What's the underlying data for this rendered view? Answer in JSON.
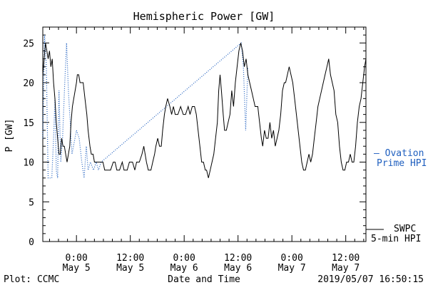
{
  "chart_data": {
    "type": "line",
    "title": "Hemispheric Power [GW]",
    "xlabel": "Date and Time",
    "ylabel": "P [GW]",
    "ylim": [
      0,
      27
    ],
    "yticks": [
      0,
      5,
      10,
      15,
      20,
      25
    ],
    "xlim_hours": [
      -7.5,
      64.5
    ],
    "xticks": [
      {
        "hour": 0,
        "line1": "0:00",
        "line2": "May 5"
      },
      {
        "hour": 12,
        "line1": "12:00",
        "line2": "May 5"
      },
      {
        "hour": 24,
        "line1": "0:00",
        "line2": "May 6"
      },
      {
        "hour": 36,
        "line1": "12:00",
        "line2": "May 6"
      },
      {
        "hour": 48,
        "line1": "0:00",
        "line2": "May 7"
      },
      {
        "hour": 60,
        "line1": "12:00",
        "line2": "May 7"
      }
    ],
    "grid": false,
    "series": [
      {
        "name": "Ovation Prime HPI",
        "legend_line1": "— Ovation",
        "legend_line2": "Prime HPI",
        "color": "#1f5fbf",
        "style": "dotted",
        "points": [
          [
            -7.5,
            13
          ],
          [
            -7.1,
            26
          ],
          [
            -6.7,
            22
          ],
          [
            -6.3,
            8
          ],
          [
            -5.9,
            8
          ],
          [
            -5.5,
            8
          ],
          [
            -5.1,
            13
          ],
          [
            -4.8,
            18
          ],
          [
            -4.5,
            9
          ],
          [
            -4.2,
            8
          ],
          [
            -3.9,
            19
          ],
          [
            -3.5,
            10
          ],
          [
            -3.1,
            13
          ],
          [
            -2.6,
            20
          ],
          [
            -2.2,
            25
          ],
          [
            -1.8,
            19
          ],
          [
            -1.4,
            15
          ],
          [
            -1,
            11
          ],
          [
            0,
            14
          ],
          [
            0.6,
            13
          ],
          [
            1.2,
            10
          ],
          [
            1.7,
            8
          ],
          [
            2.2,
            12
          ],
          [
            2.6,
            9
          ],
          [
            3.1,
            10
          ],
          [
            3.8,
            9
          ],
          [
            4.4,
            10
          ],
          [
            4.9,
            9
          ],
          [
            5.5,
            10
          ],
          [
            36.7,
            25
          ],
          [
            37.2,
            22
          ],
          [
            37.7,
            14
          ],
          [
            38.2,
            22
          ]
        ]
      },
      {
        "name": "SWPC 5-min HPI",
        "legend_line1": "SWPC",
        "legend_line2": "5-min HPI",
        "color": "#000000",
        "style": "solid",
        "points": [
          [
            -7.5,
            21
          ],
          [
            -7.2,
            23
          ],
          [
            -6.9,
            25
          ],
          [
            -6.6,
            24
          ],
          [
            -6.3,
            23
          ],
          [
            -6,
            24
          ],
          [
            -5.7,
            22
          ],
          [
            -5.4,
            23
          ],
          [
            -5.1,
            20
          ],
          [
            -4.8,
            18
          ],
          [
            -4.5,
            15
          ],
          [
            -4.2,
            13
          ],
          [
            -3.9,
            11
          ],
          [
            -3.6,
            11
          ],
          [
            -3.3,
            13
          ],
          [
            -3,
            12
          ],
          [
            -2.7,
            12
          ],
          [
            -2.4,
            11
          ],
          [
            -2.1,
            10
          ],
          [
            -1.8,
            11
          ],
          [
            -1.5,
            12
          ],
          [
            -1.2,
            15
          ],
          [
            -0.9,
            17
          ],
          [
            -0.6,
            18
          ],
          [
            -0.3,
            19
          ],
          [
            0,
            20
          ],
          [
            0.2,
            21
          ],
          [
            0.5,
            21
          ],
          [
            0.8,
            20
          ],
          [
            1.2,
            20
          ],
          [
            1.5,
            20
          ],
          [
            1.9,
            18
          ],
          [
            2.3,
            16
          ],
          [
            2.6,
            14
          ],
          [
            3,
            12
          ],
          [
            3.3,
            11
          ],
          [
            3.7,
            11
          ],
          [
            4,
            10
          ],
          [
            4.6,
            10
          ],
          [
            5.2,
            10
          ],
          [
            5.9,
            10
          ],
          [
            6.3,
            9
          ],
          [
            6.9,
            9
          ],
          [
            7.6,
            9
          ],
          [
            8.2,
            10
          ],
          [
            8.6,
            10
          ],
          [
            9,
            9
          ],
          [
            9.6,
            9
          ],
          [
            10.2,
            10
          ],
          [
            10.6,
            9
          ],
          [
            11.3,
            9
          ],
          [
            11.8,
            10
          ],
          [
            12.5,
            10
          ],
          [
            13,
            9
          ],
          [
            13.4,
            10
          ],
          [
            14,
            10
          ],
          [
            14.6,
            11
          ],
          [
            15,
            12
          ],
          [
            15.6,
            10
          ],
          [
            16,
            9
          ],
          [
            16.6,
            9
          ],
          [
            17,
            10
          ],
          [
            17.4,
            11
          ],
          [
            17.7,
            12
          ],
          [
            18.1,
            13
          ],
          [
            18.5,
            12
          ],
          [
            18.9,
            12
          ],
          [
            19.2,
            14
          ],
          [
            19.6,
            16
          ],
          [
            19.9,
            17
          ],
          [
            20.3,
            18
          ],
          [
            20.8,
            17
          ],
          [
            21.2,
            16
          ],
          [
            21.6,
            17
          ],
          [
            22.0,
            16
          ],
          [
            22.6,
            16
          ],
          [
            23.2,
            17
          ],
          [
            23.8,
            16
          ],
          [
            24.3,
            16
          ],
          [
            24.9,
            17
          ],
          [
            25.3,
            16
          ],
          [
            25.8,
            17
          ],
          [
            26.3,
            17
          ],
          [
            26.7,
            16
          ],
          [
            27.1,
            14
          ],
          [
            27.5,
            12
          ],
          [
            27.9,
            10
          ],
          [
            28.3,
            10
          ],
          [
            28.7,
            9
          ],
          [
            29.0,
            9
          ],
          [
            29.4,
            8
          ],
          [
            29.8,
            9
          ],
          [
            30.2,
            10
          ],
          [
            30.6,
            11
          ],
          [
            31,
            13
          ],
          [
            31.4,
            15
          ],
          [
            31.7,
            19
          ],
          [
            32.0,
            21
          ],
          [
            32.3,
            19
          ],
          [
            32.7,
            16
          ],
          [
            33.0,
            14
          ],
          [
            33.4,
            14
          ],
          [
            33.8,
            15
          ],
          [
            34.2,
            16
          ],
          [
            34.6,
            19
          ],
          [
            35.0,
            17
          ],
          [
            35.4,
            20
          ],
          [
            35.8,
            22
          ],
          [
            36.2,
            24
          ],
          [
            36.6,
            25
          ],
          [
            37.0,
            24
          ],
          [
            37.4,
            22
          ],
          [
            37.8,
            23
          ],
          [
            38.2,
            21
          ],
          [
            38.6,
            20
          ],
          [
            39.0,
            19
          ],
          [
            39.4,
            18
          ],
          [
            39.8,
            17
          ],
          [
            40.4,
            17
          ],
          [
            40.8,
            15
          ],
          [
            41.2,
            13
          ],
          [
            41.5,
            12
          ],
          [
            41.9,
            14
          ],
          [
            42.3,
            13
          ],
          [
            42.7,
            13
          ],
          [
            43.1,
            15
          ],
          [
            43.5,
            13
          ],
          [
            43.9,
            14
          ],
          [
            44.3,
            12
          ],
          [
            44.7,
            13
          ],
          [
            45.1,
            14
          ],
          [
            45.5,
            16
          ],
          [
            45.9,
            19
          ],
          [
            46.3,
            20
          ],
          [
            46.6,
            20
          ],
          [
            47.0,
            21
          ],
          [
            47.4,
            22
          ],
          [
            47.8,
            21
          ],
          [
            48.2,
            20
          ],
          [
            48.6,
            18
          ],
          [
            49.0,
            16
          ],
          [
            49.4,
            14
          ],
          [
            49.8,
            12
          ],
          [
            50.2,
            10
          ],
          [
            50.6,
            9
          ],
          [
            51.0,
            9
          ],
          [
            51.4,
            10
          ],
          [
            51.8,
            11
          ],
          [
            52.2,
            10
          ],
          [
            52.6,
            11
          ],
          [
            53.0,
            13
          ],
          [
            53.4,
            15
          ],
          [
            53.8,
            17
          ],
          [
            54.2,
            18
          ],
          [
            54.6,
            19
          ],
          [
            55.0,
            20
          ],
          [
            55.4,
            21
          ],
          [
            55.8,
            22
          ],
          [
            56.2,
            23
          ],
          [
            56.6,
            21
          ],
          [
            57.0,
            20
          ],
          [
            57.4,
            19
          ],
          [
            57.8,
            16
          ],
          [
            58.2,
            15
          ],
          [
            58.6,
            12
          ],
          [
            59.0,
            10
          ],
          [
            59.4,
            9
          ],
          [
            59.8,
            9
          ],
          [
            60.2,
            10
          ],
          [
            60.6,
            10
          ],
          [
            61.0,
            11
          ],
          [
            61.4,
            10
          ],
          [
            61.8,
            10
          ],
          [
            62.2,
            12
          ],
          [
            62.6,
            15
          ],
          [
            63.0,
            17
          ],
          [
            63.4,
            18
          ],
          [
            63.8,
            20
          ],
          [
            64.2,
            22
          ],
          [
            64.5,
            23
          ]
        ]
      }
    ]
  },
  "footer": {
    "left": "Plot: CCMC",
    "center": "Date and Time",
    "right": "2019/05/07 16:50:15"
  }
}
